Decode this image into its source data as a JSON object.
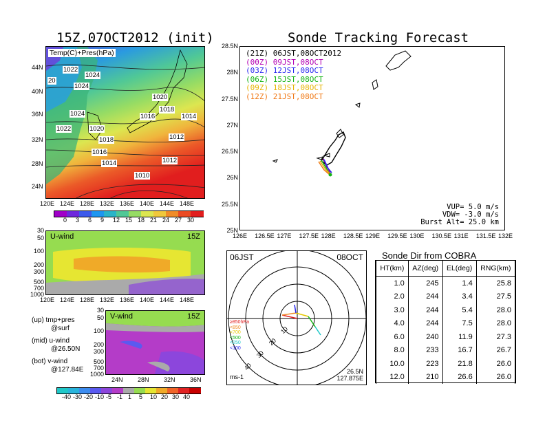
{
  "left_title": "15Z,07OCT2012 (init)",
  "main_title": "Sonde Tracking Forecast",
  "temp_map": {
    "label": "Temp(C)+Pres(hPa)",
    "lat_ticks": [
      "44N",
      "40N",
      "36N",
      "32N",
      "28N",
      "24N"
    ],
    "lon_ticks": [
      "120E",
      "124E",
      "128E",
      "132E",
      "136E",
      "140E",
      "144E",
      "148E"
    ],
    "pressure_labels": [
      "1022",
      "1024",
      "20",
      "1024",
      "1020",
      "1024",
      "1018",
      "1016",
      "1014",
      "1022",
      "1020",
      "1018",
      "1012",
      "1016",
      "1014",
      "1012",
      "1010"
    ],
    "colorbar_ticks": [
      "0",
      "3",
      "6",
      "9",
      "12",
      "15",
      "18",
      "21",
      "24",
      "27",
      "30"
    ],
    "colorbar_colors": [
      "#a000c8",
      "#6e28dc",
      "#3c5aeb",
      "#1e96f0",
      "#2ab4c8",
      "#50c896",
      "#96dc64",
      "#dce650",
      "#f0c83c",
      "#f08c28",
      "#eb4b23",
      "#e11e1e"
    ]
  },
  "u_wind": {
    "label": "U-wind",
    "time": "15Z",
    "y_ticks": [
      "30",
      "50",
      "100",
      "200",
      "300",
      "500",
      "700",
      "1000"
    ],
    "x_ticks": [
      "120E",
      "124E",
      "128E",
      "132E",
      "136E",
      "140E",
      "144E",
      "148E"
    ]
  },
  "v_wind": {
    "label": "V-wind",
    "time": "15Z",
    "y_ticks": [
      "30",
      "50",
      "100",
      "200",
      "300",
      "500",
      "700",
      "1000"
    ],
    "x_ticks": [
      "24N",
      "28N",
      "32N",
      "36N"
    ]
  },
  "legend_notes": [
    {
      "line1": "(up) tmp+pres",
      "line2": "@surf"
    },
    {
      "line1": "(mid) u-wind",
      "line2": "@26.50N"
    },
    {
      "line1": "(bot) v-wind",
      "line2": "@127.84E"
    }
  ],
  "wind_colorbar": {
    "ticks": [
      "-40",
      "-30",
      "-20",
      "-10",
      "-5",
      "-1",
      "1",
      "5",
      "10",
      "20",
      "30",
      "40"
    ],
    "colors": [
      "#1ec8c8",
      "#28b4dc",
      "#3c8cf0",
      "#5a5af0",
      "#8c46dc",
      "#b43cc8",
      "#aaaaaa",
      "#96dc50",
      "#e6e632",
      "#f0aa28",
      "#f06428",
      "#e12323",
      "#c80000"
    ]
  },
  "tracking": {
    "legend": [
      {
        "text": "(21Z) 06JST,08OCT2012",
        "color": "#000000"
      },
      {
        "text": "(00Z) 09JST,08OCT",
        "color": "#b400b4"
      },
      {
        "text": "(03Z) 12JST,08OCT",
        "color": "#2828f0"
      },
      {
        "text": "(06Z) 15JST,08OCT",
        "color": "#14b414"
      },
      {
        "text": "(09Z) 18JST,08OCT",
        "color": "#e6b400"
      },
      {
        "text": "(12Z) 21JST,08OCT",
        "color": "#f07814"
      }
    ],
    "lat_ticks": [
      "28.5N",
      "28N",
      "27.5N",
      "27N",
      "26.5N",
      "26N",
      "25.5N",
      "25N"
    ],
    "lon_ticks": [
      "126E",
      "126.5E",
      "127E",
      "127.5E",
      "128E",
      "128.5E",
      "129E",
      "129.5E",
      "130E",
      "130.5E",
      "131E",
      "131.5E",
      "132E"
    ],
    "vup": "VUP= 5.0 m/s",
    "vdw": "VDW= -3.0 m/s",
    "burst": "Burst Alt= 25.0 km"
  },
  "polar": {
    "time": "06JST",
    "date": "08OCT",
    "ring_labels": [
      "10",
      "20",
      "30",
      "40"
    ],
    "level_legend": [
      {
        "text": "≥850hPa",
        "color": "#e11e1e"
      },
      {
        "text": "<850",
        "color": "#f08c28"
      },
      {
        "text": "<700",
        "color": "#e6c800"
      },
      {
        "text": "<500",
        "color": "#14b414"
      },
      {
        "text": "<250",
        "color": "#1ec8c8"
      },
      {
        "text": "<100",
        "color": "#2828f0"
      }
    ],
    "unit": "ms-1",
    "lat": "26.5N",
    "lon": "127.875E"
  },
  "chart_data": {
    "type": "table",
    "title": "Sonde Dir from COBRA",
    "columns": [
      "HT(km)",
      "AZ(deg)",
      "EL(deg)",
      "RNG(km)"
    ],
    "rows": [
      [
        "1.0",
        "245",
        "1.4",
        "25.8"
      ],
      [
        "2.0",
        "244",
        "3.4",
        "27.5"
      ],
      [
        "3.0",
        "244",
        "5.4",
        "28.0"
      ],
      [
        "4.0",
        "244",
        "7.5",
        "28.0"
      ],
      [
        "6.0",
        "240",
        "11.9",
        "27.3"
      ],
      [
        "8.0",
        "233",
        "16.7",
        "26.7"
      ],
      [
        "10.0",
        "223",
        "21.8",
        "26.0"
      ],
      [
        "12.0",
        "210",
        "26.6",
        "26.0"
      ]
    ]
  }
}
